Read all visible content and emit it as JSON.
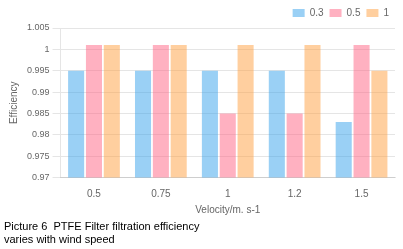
{
  "chart_data": {
    "type": "bar",
    "categories": [
      "0.5",
      "0.75",
      "1",
      "1.2",
      "1.5"
    ],
    "series": [
      {
        "name": "0.3",
        "values": [
          0.995,
          0.995,
          0.995,
          0.995,
          0.983
        ]
      },
      {
        "name": "0.5",
        "values": [
          1.001,
          1.001,
          0.985,
          0.985,
          1.001
        ]
      },
      {
        "name": "1",
        "values": [
          1.001,
          1.001,
          1.001,
          1.001,
          0.995
        ]
      }
    ],
    "x_label": "Velocity/m. s-1",
    "y_label": "Efficiency",
    "ylim": [
      0.97,
      1.005
    ],
    "yticks": [
      0.97,
      0.975,
      0.98,
      0.985,
      0.99,
      0.995,
      1,
      1.005
    ],
    "grid": true,
    "legend": "upper right",
    "annotations": [
      "Picture 6  PTFE Filter filtration efficiency",
      "varies with wind speed"
    ]
  }
}
